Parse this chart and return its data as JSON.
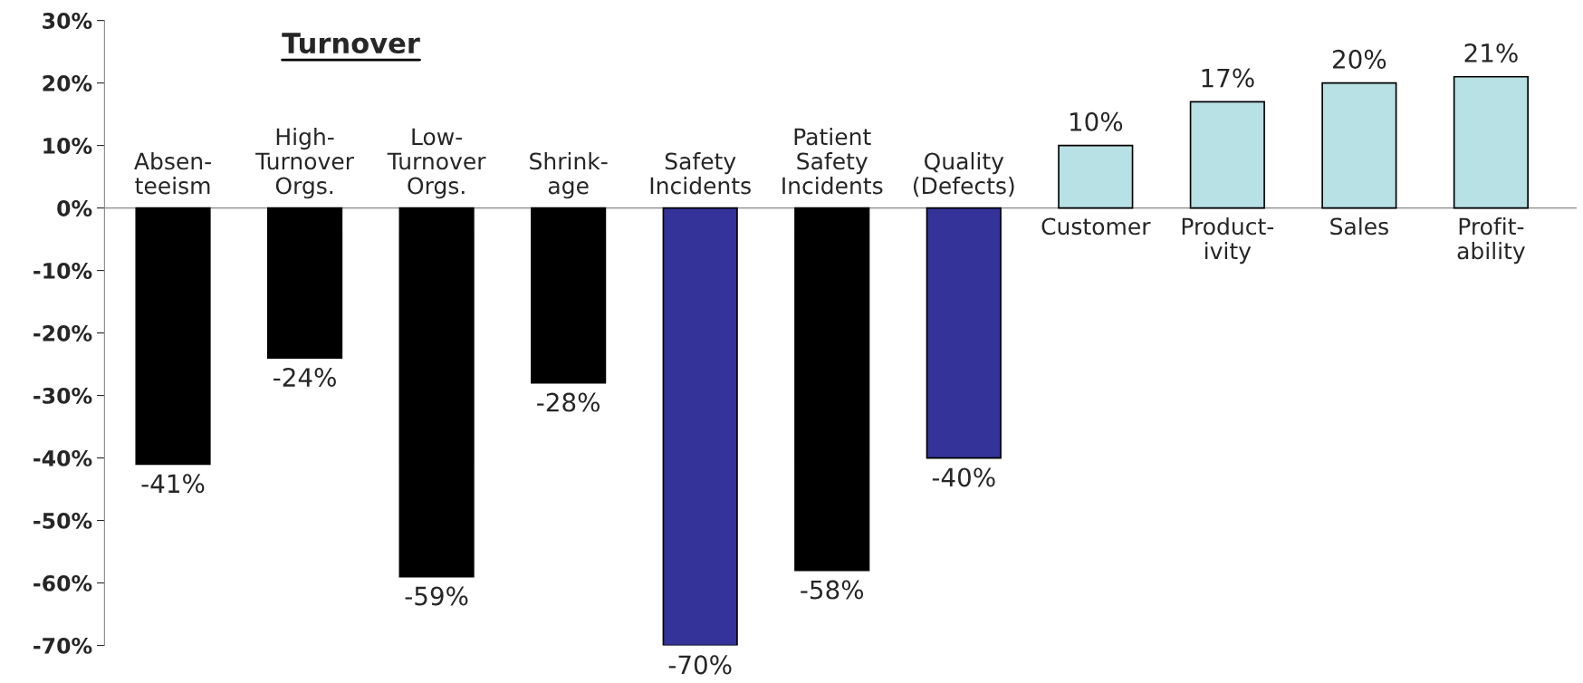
{
  "chart_data": {
    "type": "bar",
    "title": "Turnover",
    "categories": [
      "Absen-\nteeism",
      "High-\nTurnover\nOrgs.",
      "Low-\nTurnover\nOrgs.",
      "Shrink-\nage",
      "Safety\nIncidents",
      "Patient\nSafety\nIncidents",
      "Quality\n(Defects)",
      "Customer",
      "Product-\nivity",
      "Sales",
      "Profit-\nability"
    ],
    "values": [
      -41,
      -24,
      -59,
      -28,
      -70,
      -58,
      -40,
      10,
      17,
      20,
      21
    ],
    "colors": [
      "#000000",
      "#000000",
      "#000000",
      "#000000",
      "#333399",
      "#000000",
      "#333399",
      "#b7e1e4",
      "#b7e1e4",
      "#b7e1e4",
      "#b7e1e4"
    ],
    "value_labels": [
      "-41%",
      "-24%",
      "-59%",
      "-28%",
      "-70%",
      "-58%",
      "-40%",
      "10%",
      "17%",
      "20%",
      "21%"
    ],
    "ylim": [
      -70,
      30
    ],
    "yticks": [
      {
        "value": 30,
        "label": "30%"
      },
      {
        "value": 20,
        "label": "20%"
      },
      {
        "value": 10,
        "label": "10%"
      },
      {
        "value": 0,
        "label": "0%"
      },
      {
        "value": -10,
        "label": "-10%"
      },
      {
        "value": -20,
        "label": "-20%"
      },
      {
        "value": -30,
        "label": "-30%"
      },
      {
        "value": -40,
        "label": "-40%"
      },
      {
        "value": -50,
        "label": "-50%"
      },
      {
        "value": -60,
        "label": "-60%"
      },
      {
        "value": -70,
        "label": "-70%"
      }
    ],
    "grid": false,
    "legend": false
  }
}
